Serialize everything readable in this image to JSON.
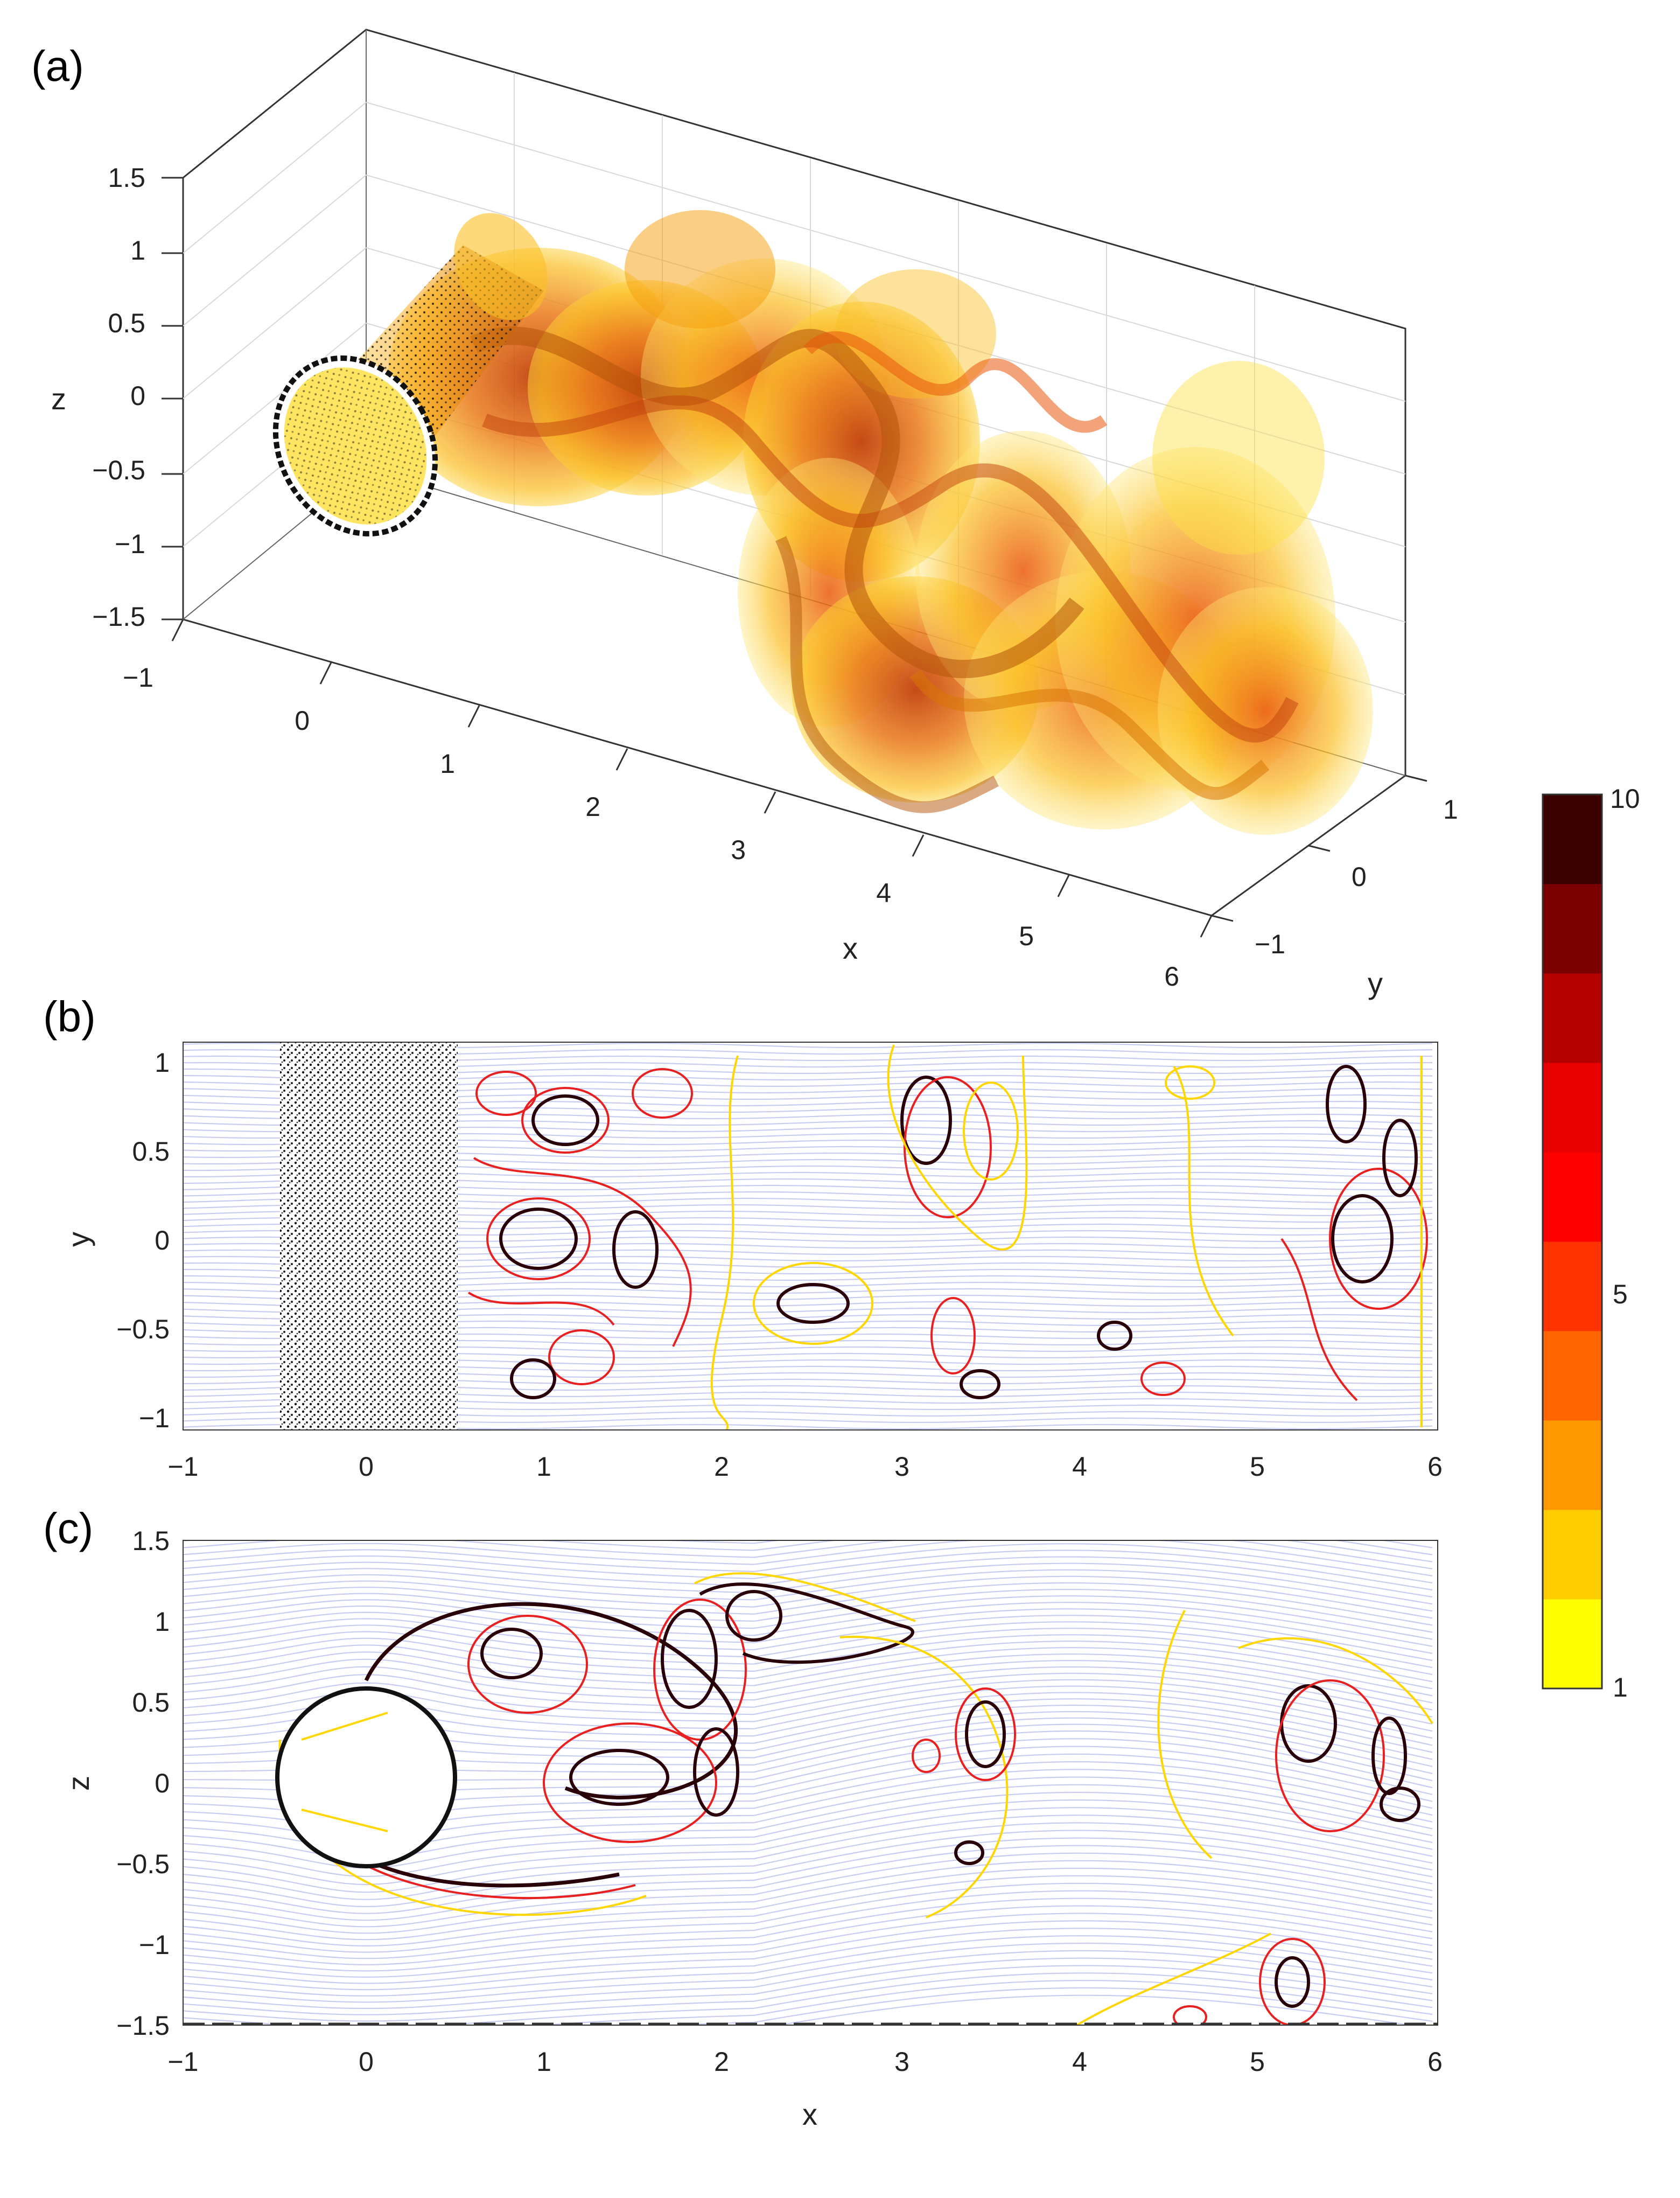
{
  "panels": {
    "a": {
      "label": "(a)"
    },
    "b": {
      "label": "(b)"
    },
    "c": {
      "label": "(c)"
    }
  },
  "chart_data": [
    {
      "id": "a",
      "type": "surface-3d",
      "xlabel": "x",
      "ylabel": "y",
      "zlabel": "z",
      "x_ticks": [
        "−1",
        "0",
        "1",
        "2",
        "3",
        "4",
        "5",
        "6"
      ],
      "y_ticks": [
        "−1",
        "0",
        "1"
      ],
      "z_ticks": [
        "−1.5",
        "−1",
        "−0.5",
        "0",
        "0.5",
        "1",
        "1.5"
      ],
      "xlim": [
        -1,
        6
      ],
      "ylim": [
        -1,
        1
      ],
      "zlim": [
        -1.5,
        1.5
      ],
      "grid": true
    },
    {
      "id": "b",
      "type": "contour",
      "xlabel": "",
      "ylabel": "y",
      "x_ticks": [
        "−1",
        "0",
        "1",
        "2",
        "3",
        "4",
        "5",
        "6"
      ],
      "y_ticks": [
        "−1",
        "−0.5",
        "0",
        "0.5",
        "1"
      ],
      "xlim": [
        -1,
        6
      ],
      "ylim": [
        -1,
        1
      ],
      "cylinder_region_x": [
        -0.5,
        0.5
      ]
    },
    {
      "id": "c",
      "type": "contour",
      "xlabel": "x",
      "ylabel": "z",
      "x_ticks": [
        "−1",
        "0",
        "1",
        "2",
        "3",
        "4",
        "5",
        "6"
      ],
      "y_ticks": [
        "−1.5",
        "−1",
        "−0.5",
        "0",
        "0.5",
        "1",
        "1.5"
      ],
      "xlim": [
        -1,
        6
      ],
      "ylim": [
        -1.5,
        1.5
      ],
      "cylinder": {
        "center": [
          0,
          0
        ],
        "radius": 0.5
      }
    }
  ],
  "colorbar": {
    "min": 1,
    "max": 10,
    "tick_labels": [
      "10",
      "5",
      "1"
    ],
    "tick_values": [
      10,
      5,
      1
    ],
    "levels": [
      "#ffff00",
      "#ffcc00",
      "#ff9900",
      "#ff6600",
      "#ff3300",
      "#ff0000",
      "#e80000",
      "#b50000",
      "#7a0000",
      "#3a0000"
    ]
  },
  "colors": {
    "streamline": "#c8ccf0",
    "contour_low": "#ffd700",
    "contour_mid": "#e82020",
    "contour_high": "#2a0008",
    "cylinder_mesh": "#111111"
  }
}
